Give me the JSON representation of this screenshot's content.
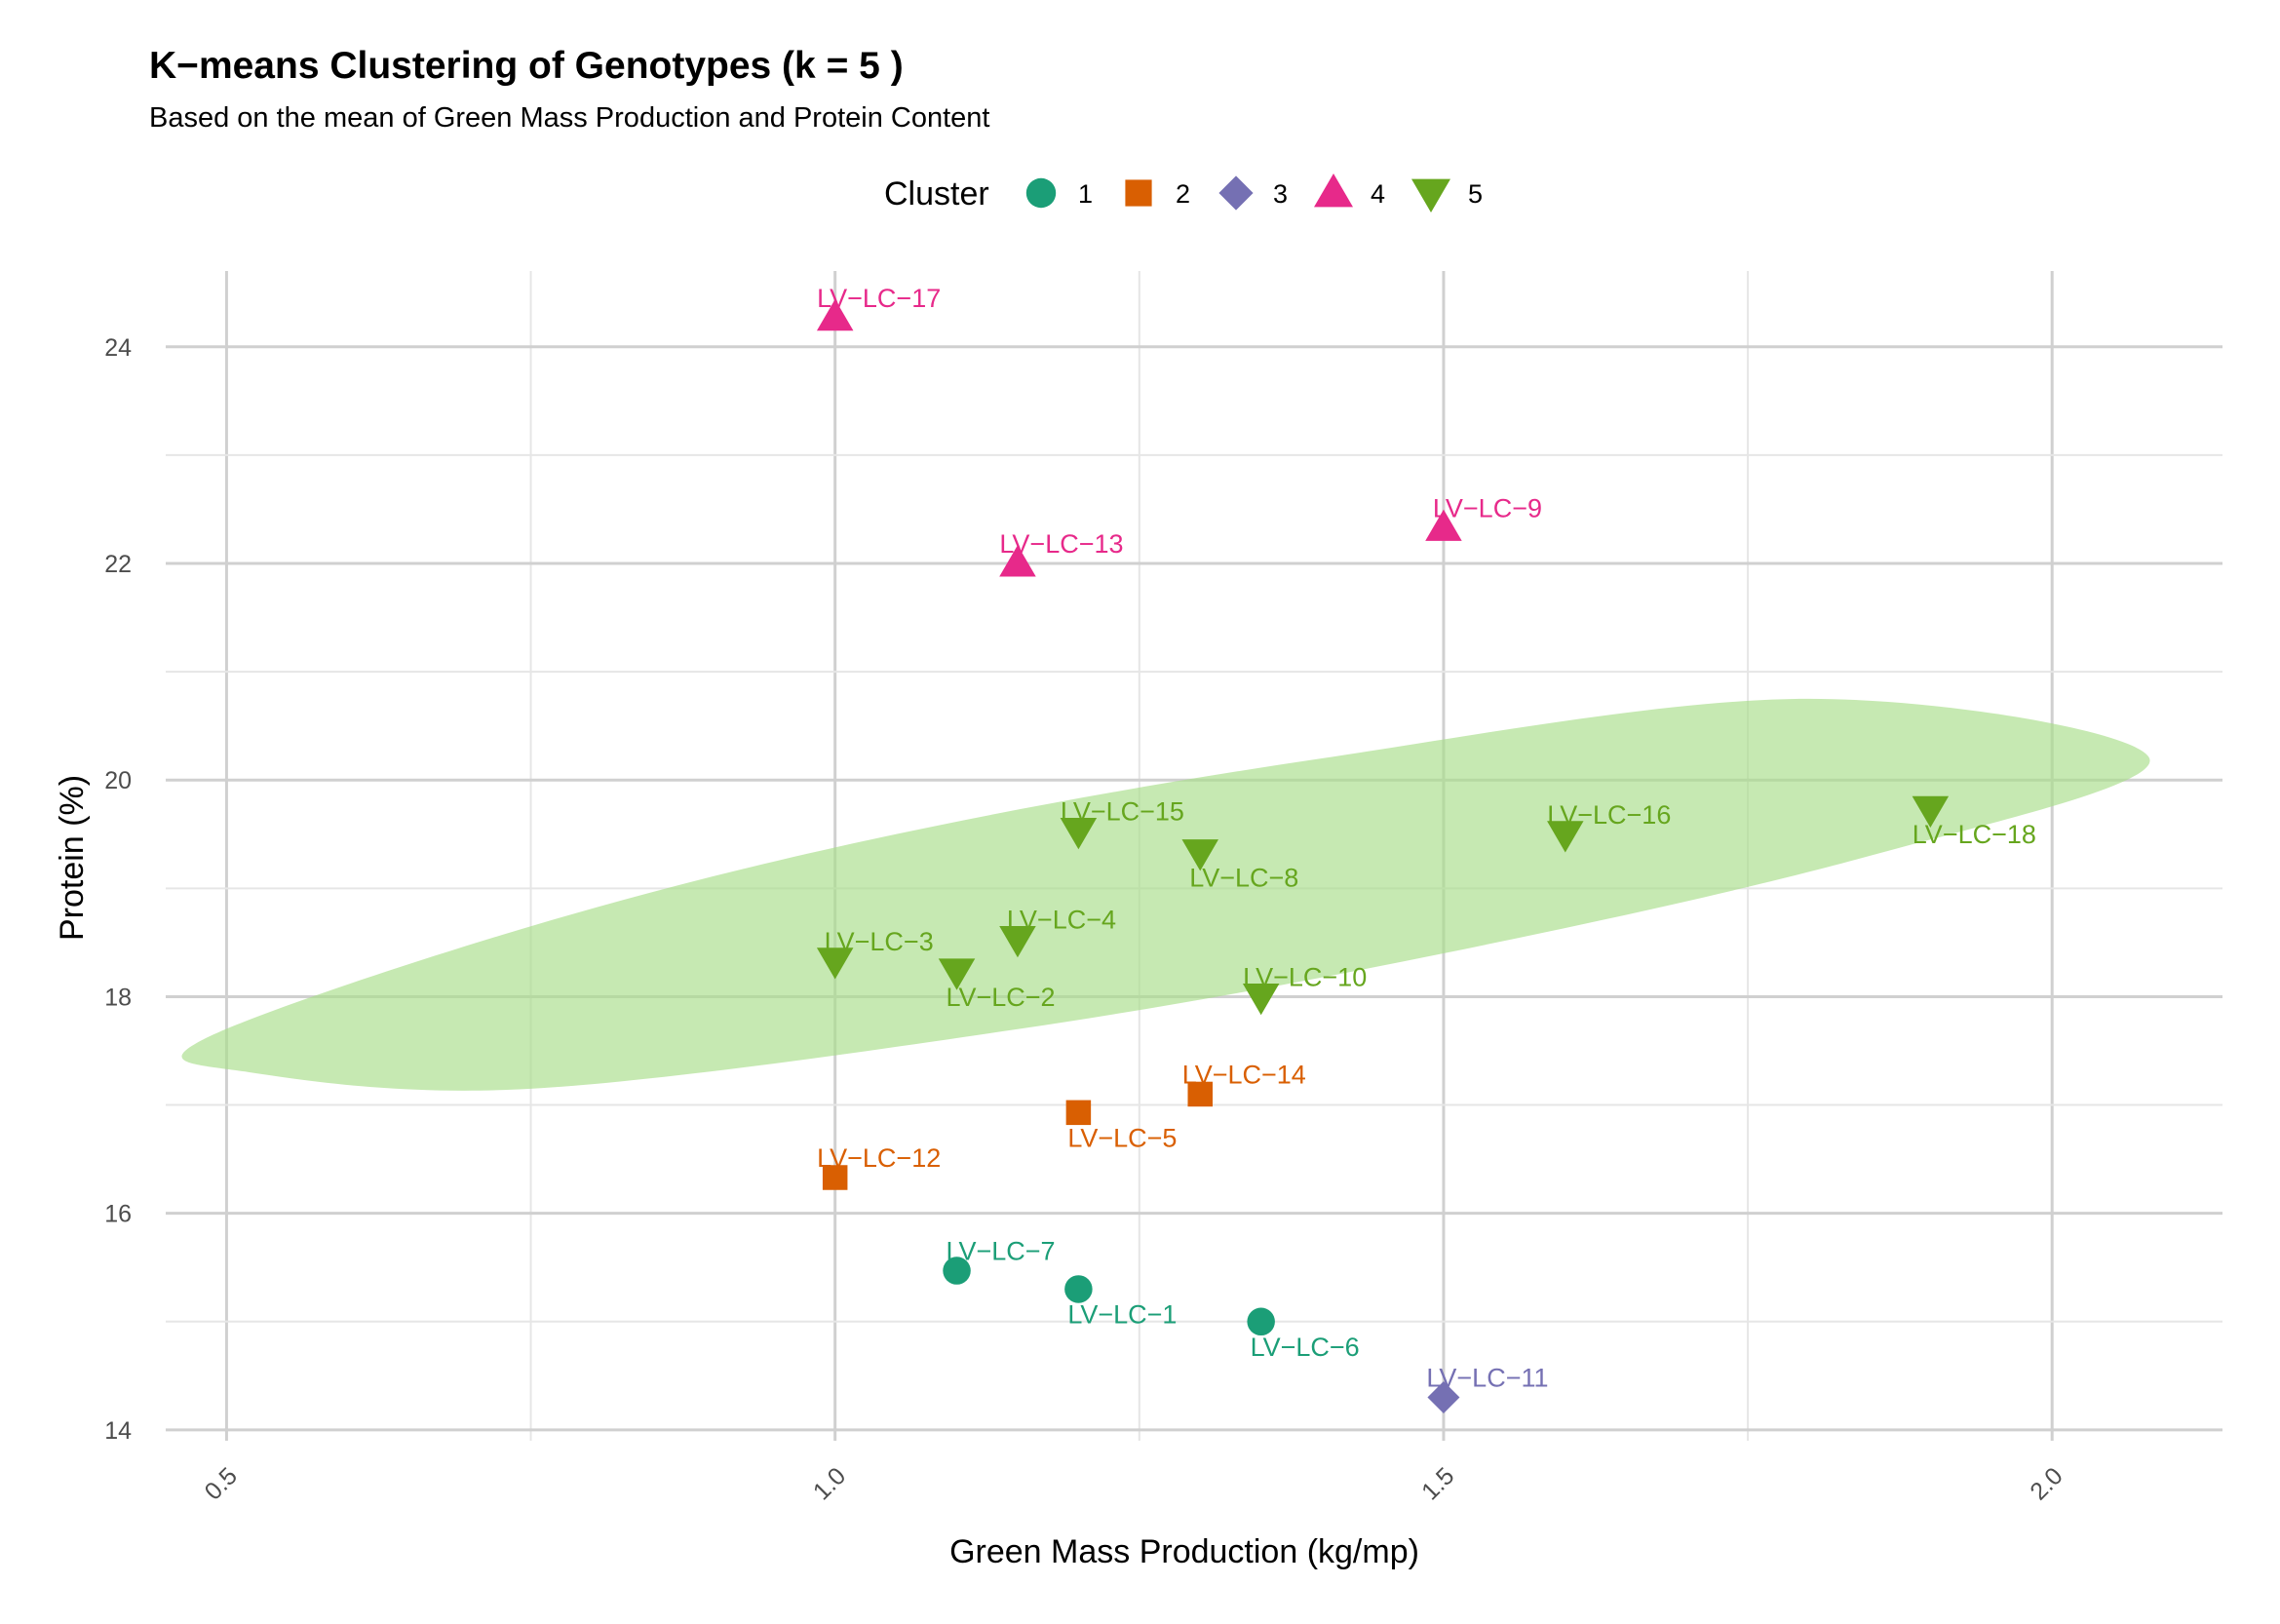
{
  "chart_data": {
    "type": "scatter",
    "title": "K−means Clustering of Genotypes (k = 5 )",
    "subtitle": "Based on the mean of Green Mass Production and Protein Content",
    "xlabel": "Green Mass Production (kg/mp)",
    "ylabel": "Protein (%)",
    "xlim": [
      0.45,
      2.14
    ],
    "ylim": [
      13.9,
      24.7
    ],
    "x_ticks": [
      0.5,
      1.0,
      1.5,
      2.0
    ],
    "x_tick_labels": [
      "0.5",
      "1.0",
      "1.5",
      "2.0"
    ],
    "y_ticks": [
      14,
      16,
      18,
      20,
      22,
      24
    ],
    "y_tick_labels": [
      "14",
      "16",
      "18",
      "20",
      "22",
      "24"
    ],
    "grid": true,
    "legend": {
      "title": "Cluster",
      "position": "top",
      "entries": [
        {
          "label": "1",
          "shape": "circle",
          "color": "#1b9e77"
        },
        {
          "label": "2",
          "shape": "square",
          "color": "#d95f02"
        },
        {
          "label": "3",
          "shape": "diamond",
          "color": "#7570b3"
        },
        {
          "label": "4",
          "shape": "triangle-up",
          "color": "#e7298a"
        },
        {
          "label": "5",
          "shape": "triangle-down",
          "color": "#66a61e"
        }
      ]
    },
    "ellipse": {
      "cluster": "5",
      "color": "#a8dd88",
      "opacity": 0.65,
      "boundary_points": [
        [
          0.48,
          17.6
        ],
        [
          0.75,
          18.65
        ],
        [
          1.05,
          19.5
        ],
        [
          1.4,
          20.2
        ],
        [
          1.8,
          20.75
        ],
        [
          2.08,
          20.2
        ],
        [
          1.85,
          19.3
        ],
        [
          1.5,
          18.4
        ],
        [
          1.15,
          17.7
        ],
        [
          0.75,
          17.15
        ],
        [
          0.52,
          17.3
        ]
      ]
    },
    "series": [
      {
        "cluster": "1",
        "color": "#1b9e77",
        "shape": "circle",
        "points": [
          {
            "label": "LV−LC−7",
            "x": 1.1,
            "y": 15.47,
            "label_pos": "above"
          },
          {
            "label": "LV−LC−1",
            "x": 1.2,
            "y": 15.3,
            "label_pos": "below"
          },
          {
            "label": "LV−LC−6",
            "x": 1.35,
            "y": 15.0,
            "label_pos": "below"
          }
        ]
      },
      {
        "cluster": "2",
        "color": "#d95f02",
        "shape": "square",
        "points": [
          {
            "label": "LV−LC−12",
            "x": 1.0,
            "y": 16.33,
            "label_pos": "above"
          },
          {
            "label": "LV−LC−5",
            "x": 1.2,
            "y": 16.93,
            "label_pos": "below"
          },
          {
            "label": "LV−LC−14",
            "x": 1.3,
            "y": 17.1,
            "label_pos": "above"
          }
        ]
      },
      {
        "cluster": "3",
        "color": "#7570b3",
        "shape": "diamond",
        "points": [
          {
            "label": "LV−LC−11",
            "x": 1.5,
            "y": 14.3,
            "label_pos": "above"
          }
        ]
      },
      {
        "cluster": "4",
        "color": "#e7298a",
        "shape": "triangle-up",
        "points": [
          {
            "label": "LV−LC−17",
            "x": 1.0,
            "y": 24.27,
            "label_pos": "above"
          },
          {
            "label": "LV−LC−13",
            "x": 1.15,
            "y": 22.0,
            "label_pos": "above"
          },
          {
            "label": "LV−LC−9",
            "x": 1.5,
            "y": 22.33,
            "label_pos": "above"
          }
        ]
      },
      {
        "cluster": "5",
        "color": "#66a61e",
        "shape": "triangle-down",
        "points": [
          {
            "label": "LV−LC−15",
            "x": 1.2,
            "y": 19.53,
            "label_pos": "above"
          },
          {
            "label": "LV−LC−8",
            "x": 1.3,
            "y": 19.33,
            "label_pos": "below"
          },
          {
            "label": "LV−LC−16",
            "x": 1.6,
            "y": 19.5,
            "label_pos": "above"
          },
          {
            "label": "LV−LC−18",
            "x": 1.9,
            "y": 19.73,
            "label_pos": "below"
          },
          {
            "label": "LV−LC−3",
            "x": 1.0,
            "y": 18.33,
            "label_pos": "above"
          },
          {
            "label": "LV−LC−2",
            "x": 1.1,
            "y": 18.23,
            "label_pos": "below"
          },
          {
            "label": "LV−LC−4",
            "x": 1.15,
            "y": 18.53,
            "label_pos": "above"
          },
          {
            "label": "LV−LC−10",
            "x": 1.35,
            "y": 18.0,
            "label_pos": "above"
          }
        ]
      }
    ]
  }
}
